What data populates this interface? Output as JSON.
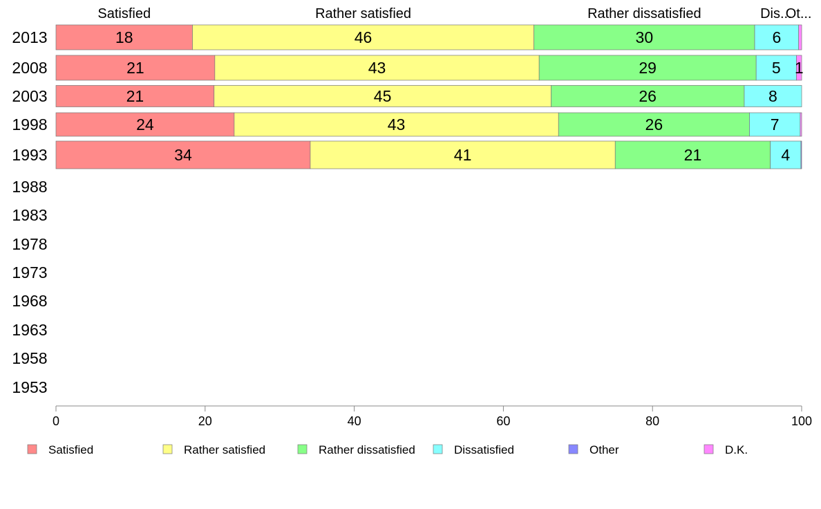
{
  "chart_data": {
    "type": "bar",
    "orientation": "horizontal",
    "stacked": true,
    "categories": [
      "2013",
      "2008",
      "2003",
      "1998",
      "1993",
      "1988",
      "1983",
      "1978",
      "1973",
      "1968",
      "1963",
      "1958",
      "1953"
    ],
    "series": [
      {
        "name": "Satisfied",
        "color": "#ff8a8a",
        "values": [
          18.3,
          21.3,
          21.2,
          23.9,
          34.1,
          null,
          null,
          null,
          null,
          null,
          null,
          null,
          null
        ],
        "labels": [
          "18",
          "21",
          "21",
          "24",
          "34",
          "",
          "",
          "",
          "",
          "",
          "",
          "",
          ""
        ]
      },
      {
        "name": "Rather satisfied",
        "color": "#ffff88",
        "values": [
          45.8,
          43.5,
          45.2,
          43.5,
          40.9,
          null,
          null,
          null,
          null,
          null,
          null,
          null,
          null
        ],
        "labels": [
          "46",
          "43",
          "45",
          "43",
          "41",
          "",
          "",
          "",
          "",
          "",
          "",
          "",
          ""
        ]
      },
      {
        "name": "Rather dissatisfied",
        "color": "#88ff88",
        "values": [
          29.6,
          29.1,
          25.9,
          25.6,
          20.8,
          null,
          null,
          null,
          null,
          null,
          null,
          null,
          null
        ],
        "labels": [
          "30",
          "29",
          "26",
          "26",
          "21",
          "",
          "",
          "",
          "",
          "",
          "",
          "",
          ""
        ]
      },
      {
        "name": "Dissatisfied",
        "color": "#88ffff",
        "values": [
          5.9,
          5.4,
          7.7,
          6.8,
          4.1,
          null,
          null,
          null,
          null,
          null,
          null,
          null,
          null
        ],
        "labels": [
          "6",
          "5",
          "8",
          "7",
          "4",
          "",
          "",
          "",
          "",
          "",
          "",
          "",
          ""
        ]
      },
      {
        "name": "Other",
        "color": "#8888ff",
        "values": [
          0,
          0,
          0,
          0,
          0.1,
          null,
          null,
          null,
          null,
          null,
          null,
          null,
          null
        ],
        "labels": [
          "",
          "",
          "",
          "",
          "",
          "",
          "",
          "",
          "",
          "",
          "",
          "",
          ""
        ]
      },
      {
        "name": "D.K.",
        "color": "#ff88ff",
        "values": [
          0.4,
          0.7,
          0,
          0.2,
          0,
          null,
          null,
          null,
          null,
          null,
          null,
          null,
          null
        ],
        "labels": [
          "",
          "1",
          "",
          "",
          "",
          "",
          "",
          "",
          "",
          "",
          "",
          "",
          ""
        ]
      }
    ],
    "top_labels": [
      "Satisfied",
      "Rather satisfied",
      "Rather dissatisfied",
      "Dis...",
      "Ot..."
    ],
    "xlim": [
      0,
      100
    ],
    "xticks": [
      0,
      20,
      40,
      60,
      80,
      100
    ],
    "xlabel": "",
    "ylabel": "",
    "title": "",
    "grid": false,
    "legend_position": "bottom"
  }
}
